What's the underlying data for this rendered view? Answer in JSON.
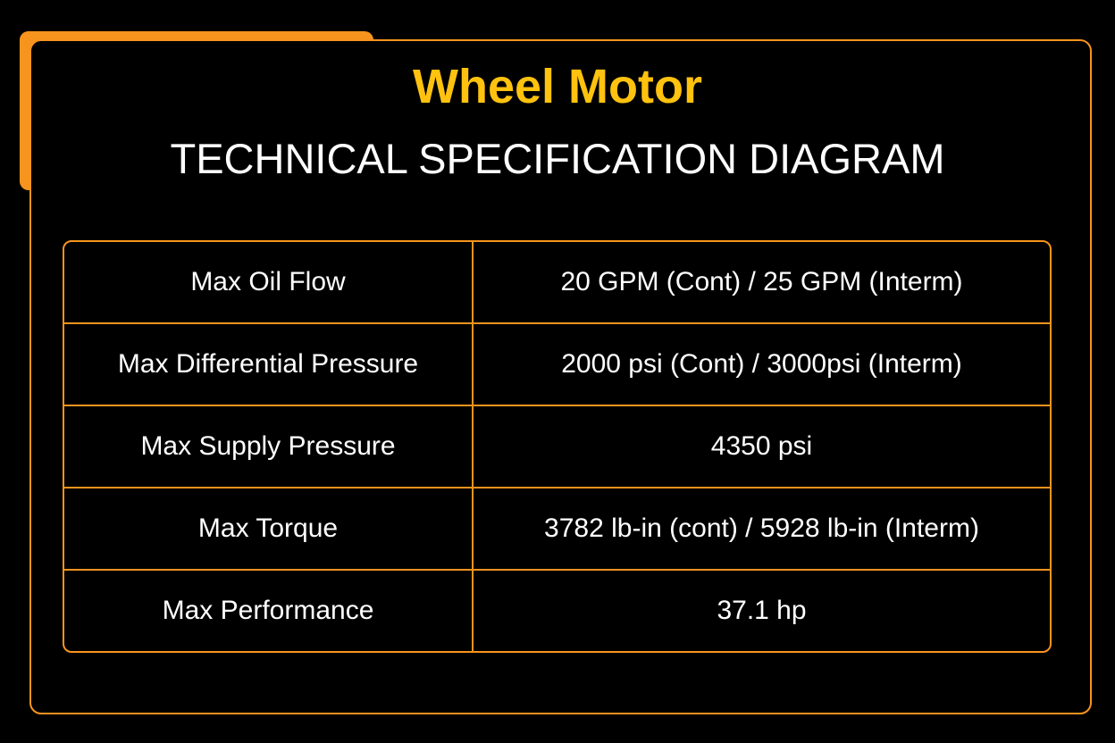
{
  "header": {
    "title": "Wheel Motor",
    "subtitle": "TECHNICAL SPECIFICATION DIAGRAM"
  },
  "table": {
    "rows": [
      [
        "Max Oil Flow",
        "20 GPM (Cont) / 25 GPM (Interm)"
      ],
      [
        "Max Differential Pressure",
        "2000 psi (Cont) / 3000psi (Interm)"
      ],
      [
        "Max Supply Pressure",
        "4350 psi"
      ],
      [
        "Max Torque",
        "3782 lb-in (cont) / 5928 lb-in (Interm)"
      ],
      [
        "Max Performance",
        "37.1 hp"
      ]
    ]
  }
}
